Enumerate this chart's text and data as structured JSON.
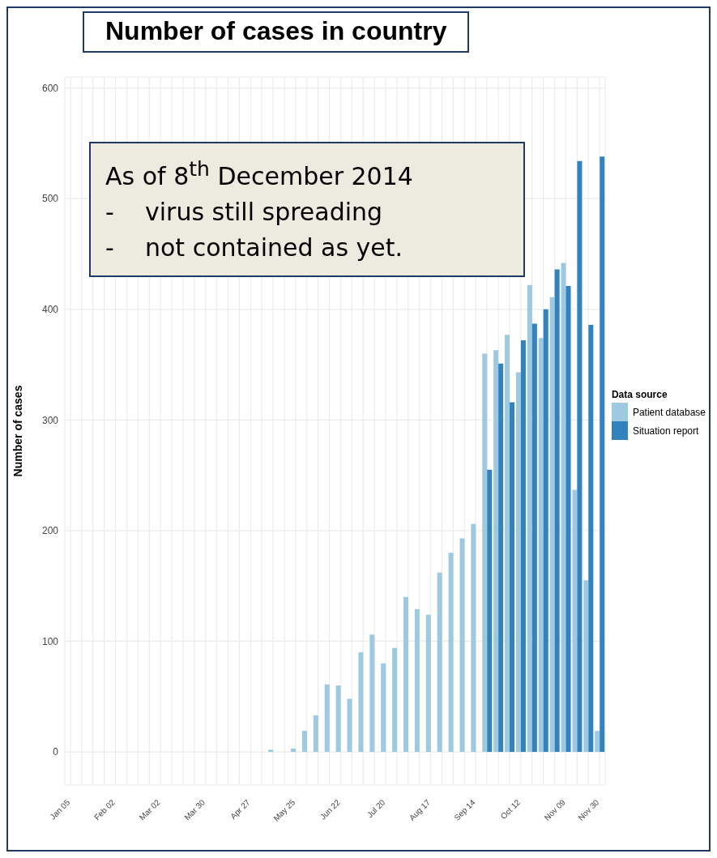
{
  "chart_data": {
    "type": "bar",
    "title": "Number of cases in country",
    "ylabel": "Number of cases",
    "legend_title": "Data source",
    "annotations": [
      "As of 8$^{th}$ December 2014",
      "-    virus still spreading",
      "-    not contained as yet."
    ],
    "categories": [
      "Jan 05",
      null,
      null,
      null,
      "Feb 02",
      null,
      null,
      null,
      "Mar 02",
      null,
      null,
      null,
      "Mar 30",
      null,
      null,
      null,
      "Apr 27",
      null,
      null,
      null,
      "May 25",
      null,
      null,
      null,
      "Jun 22",
      null,
      null,
      null,
      "Jul 20",
      null,
      null,
      null,
      "Aug 17",
      null,
      null,
      null,
      "Sep 14",
      null,
      null,
      null,
      "Oct 12",
      null,
      null,
      null,
      "Nov 09",
      null,
      null,
      "Nov 30"
    ],
    "series": [
      {
        "name": "Patient database",
        "color": "#9ecae1",
        "values": [
          null,
          null,
          null,
          null,
          null,
          null,
          null,
          null,
          null,
          null,
          null,
          null,
          null,
          null,
          null,
          null,
          null,
          null,
          2,
          null,
          3,
          19,
          33,
          61,
          60,
          48,
          90,
          106,
          80,
          94,
          140,
          129,
          124,
          162,
          180,
          193,
          206,
          360,
          363,
          377,
          343,
          422,
          374,
          411,
          442,
          237,
          155,
          19
        ]
      },
      {
        "name": "Situation report",
        "color": "#3182bd",
        "values": [
          null,
          null,
          null,
          null,
          null,
          null,
          null,
          null,
          null,
          null,
          null,
          null,
          null,
          null,
          null,
          null,
          null,
          null,
          null,
          null,
          null,
          null,
          null,
          null,
          null,
          null,
          null,
          null,
          null,
          null,
          null,
          null,
          null,
          null,
          null,
          null,
          null,
          255,
          351,
          316,
          372,
          387,
          400,
          436,
          421,
          534,
          386,
          538
        ]
      }
    ],
    "ylim": [
      -30,
      610
    ],
    "yticks": [
      0,
      100,
      200,
      300,
      400,
      500,
      600
    ],
    "grid": true,
    "legend": "right"
  }
}
